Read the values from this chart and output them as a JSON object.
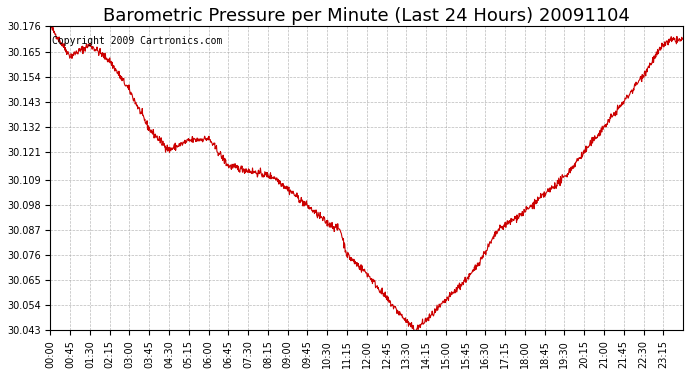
{
  "title": "Barometric Pressure per Minute (Last 24 Hours) 20091104",
  "copyright": "Copyright 2009 Cartronics.com",
  "line_color": "#cc0000",
  "bg_color": "#ffffff",
  "plot_bg_color": "#ffffff",
  "grid_color": "#aaaaaa",
  "ylim": [
    30.043,
    30.176
  ],
  "yticks": [
    30.043,
    30.054,
    30.065,
    30.076,
    30.087,
    30.098,
    30.109,
    30.121,
    30.132,
    30.143,
    30.154,
    30.165,
    30.176
  ],
  "xtick_labels": [
    "00:00",
    "00:45",
    "01:30",
    "02:15",
    "03:00",
    "03:45",
    "04:30",
    "05:15",
    "06:00",
    "06:45",
    "07:30",
    "08:15",
    "09:00",
    "09:45",
    "10:30",
    "11:15",
    "12:00",
    "12:45",
    "13:30",
    "14:15",
    "15:00",
    "15:45",
    "16:30",
    "17:15",
    "18:00",
    "18:45",
    "19:30",
    "20:15",
    "21:00",
    "21:45",
    "22:30",
    "23:15"
  ],
  "title_fontsize": 13,
  "tick_fontsize": 7,
  "copyright_fontsize": 7,
  "key_times": [
    0,
    45,
    90,
    135,
    180,
    225,
    270,
    315,
    360,
    405,
    450,
    510,
    570,
    630,
    660,
    675,
    720,
    765,
    810,
    830,
    870,
    960,
    1020,
    1080,
    1170,
    1260,
    1305,
    1350,
    1395,
    1415
  ],
  "key_vals": [
    30.176,
    30.163,
    30.168,
    30.161,
    30.148,
    30.131,
    30.122,
    30.126,
    30.127,
    30.115,
    30.113,
    30.11,
    30.1,
    30.09,
    30.087,
    30.076,
    30.068,
    30.057,
    30.047,
    30.043,
    30.05,
    30.068,
    30.087,
    30.095,
    30.11,
    30.132,
    30.143,
    30.155,
    30.168,
    30.17
  ]
}
